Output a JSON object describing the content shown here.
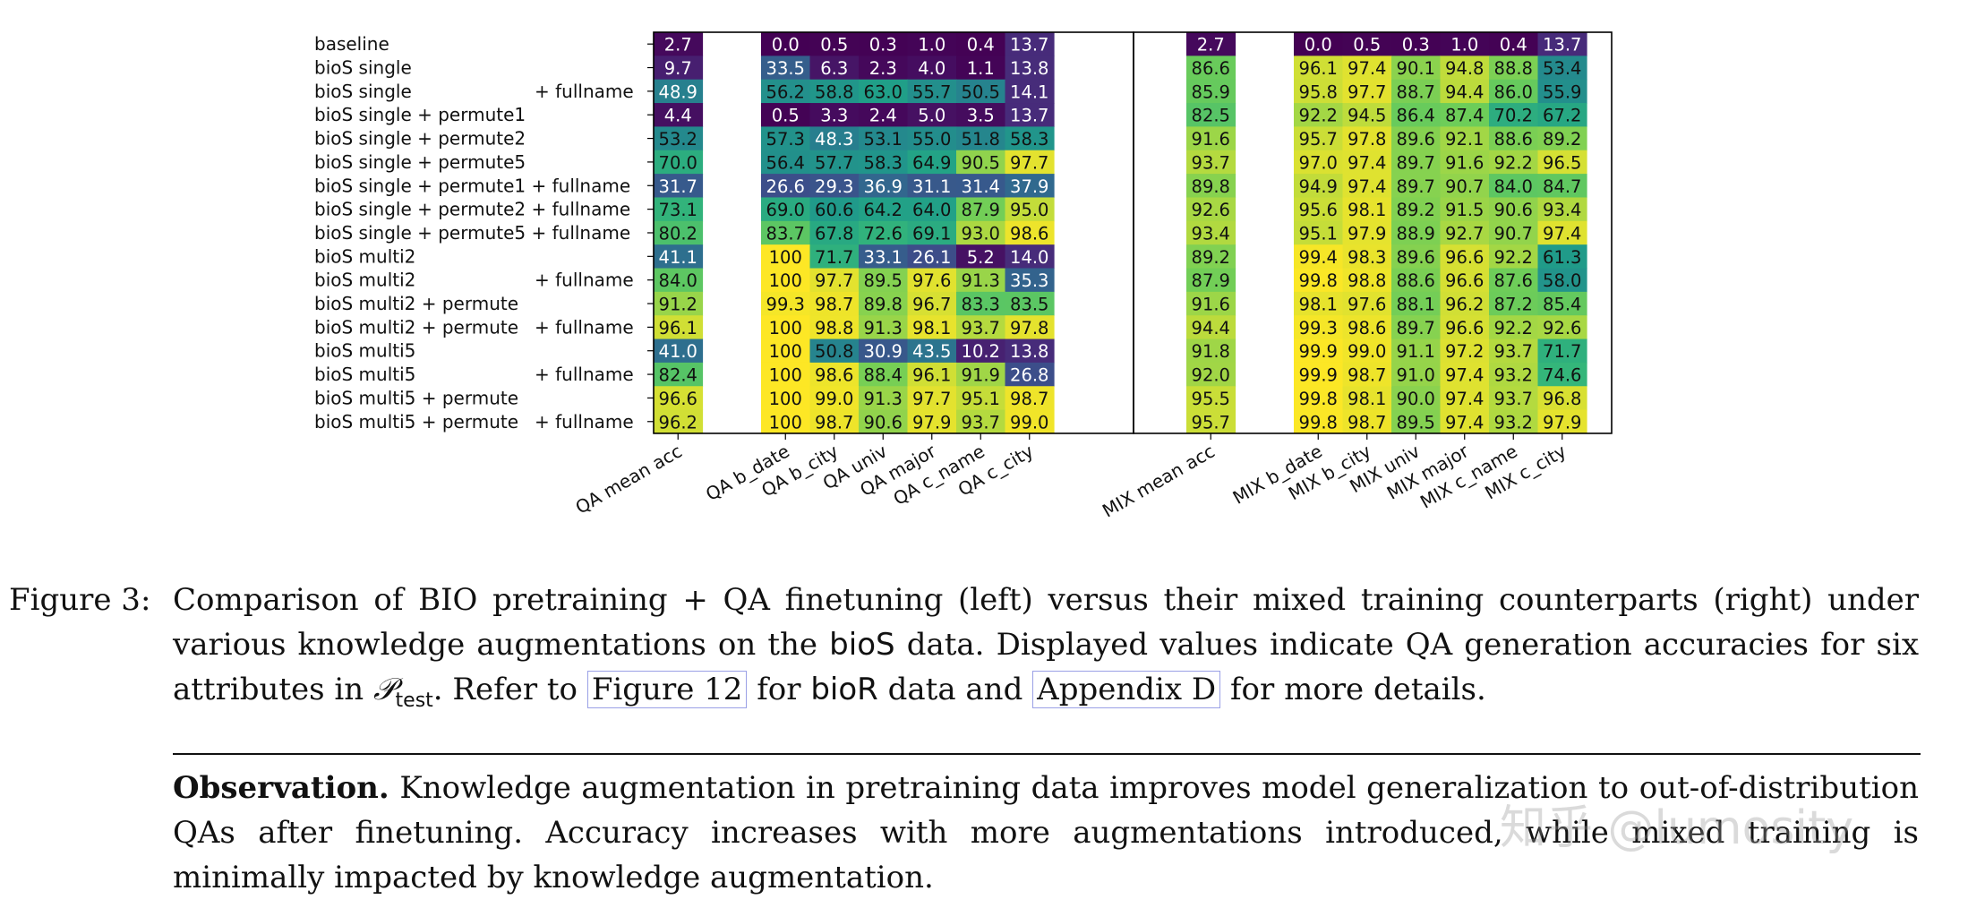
{
  "chart_data": {
    "type": "heatmap",
    "colormap": "viridis",
    "value_range": [
      0,
      100
    ],
    "rows": [
      "baseline",
      "bioS single",
      "bioS single + fullname",
      "bioS single + permute1",
      "bioS single + permute2",
      "bioS single + permute5",
      "bioS single + permute1 + fullname",
      "bioS single + permute2 + fullname",
      "bioS single + permute5 + fullname",
      "bioS multi2",
      "bioS multi2 + fullname",
      "bioS multi2 + permute",
      "bioS multi2 + permute + fullname",
      "bioS multi5",
      "bioS multi5 + fullname",
      "bioS multi5 + permute",
      "bioS multi5 + permute + fullname"
    ],
    "row_labels": [
      {
        "left": "baseline",
        "right": ""
      },
      {
        "left": "bioS single",
        "right": ""
      },
      {
        "left": "bioS single",
        "right": "+ fullname"
      },
      {
        "left": "bioS single + permute1",
        "right": ""
      },
      {
        "left": "bioS single + permute2",
        "right": ""
      },
      {
        "left": "bioS single + permute5",
        "right": ""
      },
      {
        "left": "bioS single + permute1 + fullname",
        "right": ""
      },
      {
        "left": "bioS single + permute2 + fullname",
        "right": ""
      },
      {
        "left": "bioS single + permute5 + fullname",
        "right": ""
      },
      {
        "left": "bioS multi2",
        "right": ""
      },
      {
        "left": "bioS multi2",
        "right": "+ fullname"
      },
      {
        "left": "bioS multi2 + permute",
        "right": ""
      },
      {
        "left": "bioS multi2 + permute",
        "right": "+ fullname"
      },
      {
        "left": "bioS multi5",
        "right": ""
      },
      {
        "left": "bioS multi5",
        "right": "+ fullname"
      },
      {
        "left": "bioS multi5 + permute",
        "right": ""
      },
      {
        "left": "bioS multi5 + permute",
        "right": "+ fullname"
      }
    ],
    "panels": [
      {
        "name": "QA",
        "mean": {
          "column": "QA mean acc",
          "values": [
            2.7,
            9.7,
            48.9,
            4.4,
            53.2,
            70.0,
            31.7,
            73.1,
            80.2,
            41.1,
            84.0,
            91.2,
            96.1,
            41.0,
            82.4,
            96.6,
            96.2
          ]
        },
        "attributes": {
          "columns": [
            "QA b_date",
            "QA b_city",
            "QA univ",
            "QA major",
            "QA c_name",
            "QA c_city"
          ],
          "values": [
            [
              0.0,
              0.5,
              0.3,
              1.0,
              0.4,
              13.7
            ],
            [
              33.5,
              6.3,
              2.3,
              4.0,
              1.1,
              13.8
            ],
            [
              56.2,
              58.8,
              63.0,
              55.7,
              50.5,
              14.1
            ],
            [
              0.5,
              3.3,
              2.4,
              5.0,
              3.5,
              13.7
            ],
            [
              57.3,
              48.3,
              53.1,
              55.0,
              51.8,
              58.3
            ],
            [
              56.4,
              57.7,
              58.3,
              64.9,
              90.5,
              97.7
            ],
            [
              26.6,
              29.3,
              36.9,
              31.1,
              31.4,
              37.9
            ],
            [
              69.0,
              60.6,
              64.2,
              64.0,
              87.9,
              95.0
            ],
            [
              83.7,
              67.8,
              72.6,
              69.1,
              93.0,
              98.6
            ],
            [
              100,
              71.7,
              33.1,
              26.1,
              5.2,
              14.0
            ],
            [
              100,
              97.7,
              89.5,
              97.6,
              91.3,
              35.3
            ],
            [
              99.3,
              98.7,
              89.8,
              96.7,
              83.3,
              83.5
            ],
            [
              100,
              98.8,
              91.3,
              98.1,
              93.7,
              97.8
            ],
            [
              100,
              50.8,
              30.9,
              43.5,
              10.2,
              13.8
            ],
            [
              100,
              98.6,
              88.4,
              96.1,
              91.9,
              26.8
            ],
            [
              100,
              99.0,
              91.3,
              97.7,
              95.1,
              98.7
            ],
            [
              100,
              98.7,
              90.6,
              97.9,
              93.7,
              99.0
            ]
          ]
        }
      },
      {
        "name": "MIX",
        "mean": {
          "column": "MIX mean acc",
          "values": [
            2.7,
            86.6,
            85.9,
            82.5,
            91.6,
            93.7,
            89.8,
            92.6,
            93.4,
            89.2,
            87.9,
            91.6,
            94.4,
            91.8,
            92.0,
            95.5,
            95.7
          ]
        },
        "attributes": {
          "columns": [
            "MIX b_date",
            "MIX b_city",
            "MIX univ",
            "MIX major",
            "MIX c_name",
            "MIX c_city"
          ],
          "values": [
            [
              0.0,
              0.5,
              0.3,
              1.0,
              0.4,
              13.7
            ],
            [
              96.1,
              97.4,
              90.1,
              94.8,
              88.8,
              53.4
            ],
            [
              95.8,
              97.7,
              88.7,
              94.4,
              86.0,
              55.9
            ],
            [
              92.2,
              94.5,
              86.4,
              87.4,
              70.2,
              67.2
            ],
            [
              95.7,
              97.8,
              89.6,
              92.1,
              88.6,
              89.2
            ],
            [
              97.0,
              97.4,
              89.7,
              91.6,
              92.2,
              96.5
            ],
            [
              94.9,
              97.4,
              89.7,
              90.7,
              84.0,
              84.7
            ],
            [
              95.6,
              98.1,
              89.2,
              91.5,
              90.6,
              93.4
            ],
            [
              95.1,
              97.9,
              88.9,
              92.7,
              90.7,
              97.4
            ],
            [
              99.4,
              98.3,
              89.6,
              96.6,
              92.2,
              61.3
            ],
            [
              99.8,
              98.8,
              88.6,
              96.6,
              87.6,
              58.0
            ],
            [
              98.1,
              97.6,
              88.1,
              96.2,
              87.2,
              85.4
            ],
            [
              99.3,
              98.6,
              89.7,
              96.6,
              92.2,
              92.6
            ],
            [
              99.9,
              99.0,
              91.1,
              97.2,
              93.7,
              71.7
            ],
            [
              99.9,
              98.7,
              91.0,
              97.4,
              93.2,
              74.6
            ],
            [
              99.8,
              98.1,
              90.0,
              97.4,
              93.7,
              96.8
            ],
            [
              99.8,
              98.7,
              89.5,
              97.4,
              93.2,
              97.9
            ]
          ]
        }
      }
    ]
  },
  "caption": {
    "label": "Figure 3:",
    "text_1": "Comparison of BIO pretraining + QA finetuning (left) versus their mixed training counterparts (right) under various knowledge augmentations on the",
    "dataset_1": "bioS",
    "text_2": "data. Displayed values indicate QA generation accuracies for six attributes in",
    "math_symbol": "𝒫",
    "math_subscript": "test",
    "text_3": ". Refer to",
    "ref_1": "Figure 12",
    "text_4": "for",
    "dataset_2": "bioR",
    "text_5": "data and",
    "ref_2": "Appendix D",
    "text_6": "for more details."
  },
  "observation": {
    "heading": "Observation.",
    "text": "Knowledge augmentation in pretraining data improves model generalization to out-of-distribution QAs after finetuning. Accuracy increases with more augmentations introduced, while mixed training is minimally impacted by knowledge augmentation."
  },
  "watermark": {
    "text": "知乎 @lumosity"
  }
}
